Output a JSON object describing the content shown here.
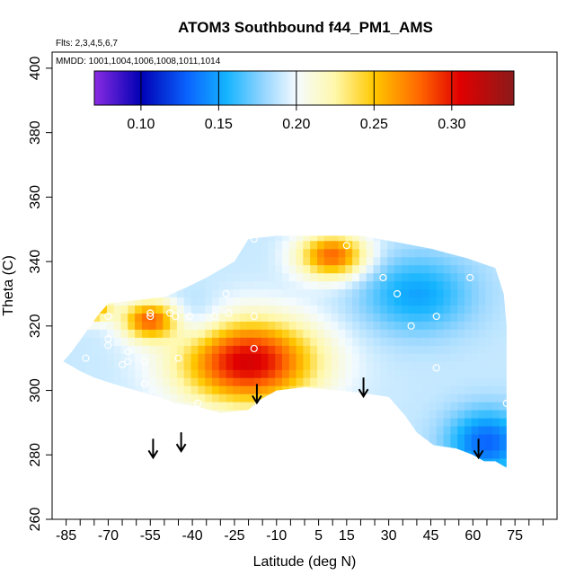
{
  "chart_data": {
    "type": "heatmap",
    "title": "ATOM3 Southbound f44_PM1_AMS",
    "flights_label": "Flts: 2,3,4,5,6,7",
    "mmdd_label": "MMDD: 1001,1004,1006,1008,1011,1014",
    "xlabel": "Latitude (deg N)",
    "ylabel": "Theta (C)",
    "xlim": [
      -90,
      90
    ],
    "ylim": [
      260,
      405
    ],
    "x_ticks": [
      -85,
      -70,
      -55,
      -40,
      -25,
      -10,
      5,
      15,
      30,
      45,
      60,
      75
    ],
    "x_minor_ticks": [
      -80,
      -75,
      -65,
      -60,
      -50,
      -45,
      -35,
      -30,
      -20,
      -15,
      -5,
      0,
      10,
      20,
      25,
      35,
      40,
      50,
      55,
      65,
      70,
      80,
      85
    ],
    "y_ticks": [
      260,
      280,
      300,
      320,
      340,
      360,
      380,
      400
    ],
    "colorbar": {
      "range": [
        0.07,
        0.34
      ],
      "ticks": [
        0.1,
        0.15,
        0.2,
        0.25,
        0.3
      ],
      "tick_labels": [
        "0.10",
        "0.15",
        "0.20",
        "0.25",
        "0.30"
      ],
      "stops": [
        {
          "v": 0.07,
          "color": "#8a2be2"
        },
        {
          "v": 0.1,
          "color": "#0000b4"
        },
        {
          "v": 0.13,
          "color": "#0a64ff"
        },
        {
          "v": 0.155,
          "color": "#14b4ff"
        },
        {
          "v": 0.18,
          "color": "#9ad7ff"
        },
        {
          "v": 0.2,
          "color": "#f4fbff"
        },
        {
          "v": 0.225,
          "color": "#fff8aa"
        },
        {
          "v": 0.25,
          "color": "#ffc800"
        },
        {
          "v": 0.28,
          "color": "#ff6400"
        },
        {
          "v": 0.305,
          "color": "#e10000"
        },
        {
          "v": 0.34,
          "color": "#8b1a1a"
        }
      ]
    },
    "field_boundary": {
      "upper": [
        [
          -86,
          309
        ],
        [
          -83,
          312
        ],
        [
          -78,
          318
        ],
        [
          -74,
          323
        ],
        [
          -70,
          327
        ],
        [
          -60,
          328
        ],
        [
          -50,
          329
        ],
        [
          -42,
          332
        ],
        [
          -35,
          335
        ],
        [
          -25,
          340
        ],
        [
          -20,
          347
        ],
        [
          -10,
          348
        ],
        [
          20,
          348
        ],
        [
          33,
          346
        ],
        [
          45,
          344
        ],
        [
          58,
          341
        ],
        [
          68,
          338
        ],
        [
          71,
          330
        ],
        [
          72,
          320
        ],
        [
          72,
          310
        ],
        [
          72,
          300
        ],
        [
          72,
          290
        ],
        [
          72,
          276
        ]
      ],
      "lower": [
        [
          -86,
          309
        ],
        [
          -80,
          306
        ],
        [
          -75,
          304
        ],
        [
          -68,
          302
        ],
        [
          -60,
          300
        ],
        [
          -52,
          298
        ],
        [
          -46,
          296
        ],
        [
          -38,
          295
        ],
        [
          -30,
          293
        ],
        [
          -20,
          294
        ],
        [
          -16,
          297
        ],
        [
          -10,
          300
        ],
        [
          0,
          301
        ],
        [
          12,
          300
        ],
        [
          22,
          299
        ],
        [
          30,
          298
        ],
        [
          36,
          292
        ],
        [
          40,
          287
        ],
        [
          46,
          283
        ],
        [
          54,
          282
        ],
        [
          60,
          280
        ],
        [
          64,
          278
        ],
        [
          68,
          278
        ],
        [
          72,
          276
        ]
      ]
    },
    "hotspots": [
      {
        "lat": -20,
        "theta": 309,
        "value": 0.31,
        "lat_radius": 24,
        "theta_radius": 13
      },
      {
        "lat": -55,
        "theta": 322,
        "value": 0.28,
        "lat_radius": 10,
        "theta_radius": 6
      },
      {
        "lat": -77,
        "theta": 326,
        "value": 0.29,
        "lat_radius": 7,
        "theta_radius": 4
      },
      {
        "lat": 10,
        "theta": 342,
        "value": 0.28,
        "lat_radius": 12,
        "theta_radius": 7
      },
      {
        "lat": 65,
        "theta": 284,
        "value": 0.13,
        "lat_radius": 14,
        "theta_radius": 10
      },
      {
        "lat": 40,
        "theta": 330,
        "value": 0.15,
        "lat_radius": 20,
        "theta_radius": 12
      },
      {
        "lat": -40,
        "theta": 322,
        "value": 0.17,
        "lat_radius": 12,
        "theta_radius": 8
      }
    ],
    "background_value": 0.19,
    "samples": [
      {
        "lat": -70,
        "theta": 323
      },
      {
        "lat": -70,
        "theta": 316
      },
      {
        "lat": -70,
        "theta": 314
      },
      {
        "lat": -63,
        "theta": 312
      },
      {
        "lat": -63,
        "theta": 309
      },
      {
        "lat": -57,
        "theta": 309
      },
      {
        "lat": -57,
        "theta": 302
      },
      {
        "lat": -65,
        "theta": 308
      },
      {
        "lat": -78,
        "theta": 310
      },
      {
        "lat": -55,
        "theta": 324
      },
      {
        "lat": -55,
        "theta": 323
      },
      {
        "lat": -48,
        "theta": 324
      },
      {
        "lat": -46,
        "theta": 323
      },
      {
        "lat": -41,
        "theta": 323
      },
      {
        "lat": -45,
        "theta": 310
      },
      {
        "lat": -32,
        "theta": 323
      },
      {
        "lat": -28,
        "theta": 330
      },
      {
        "lat": -27,
        "theta": 324
      },
      {
        "lat": -18,
        "theta": 323
      },
      {
        "lat": -18,
        "theta": 313
      },
      {
        "lat": -38,
        "theta": 296
      },
      {
        "lat": -18,
        "theta": 347
      },
      {
        "lat": 15,
        "theta": 345
      },
      {
        "lat": 28,
        "theta": 335
      },
      {
        "lat": 33,
        "theta": 330
      },
      {
        "lat": 38,
        "theta": 320
      },
      {
        "lat": 47,
        "theta": 323
      },
      {
        "lat": 47,
        "theta": 307
      },
      {
        "lat": 59,
        "theta": 335
      },
      {
        "lat": 70,
        "theta": 337
      },
      {
        "lat": 72,
        "theta": 296
      }
    ],
    "arrows": [
      {
        "lat": -54,
        "theta": 285
      },
      {
        "lat": -44,
        "theta": 287
      },
      {
        "lat": -17,
        "theta": 302
      },
      {
        "lat": 21,
        "theta": 304
      },
      {
        "lat": 62,
        "theta": 285
      }
    ]
  }
}
